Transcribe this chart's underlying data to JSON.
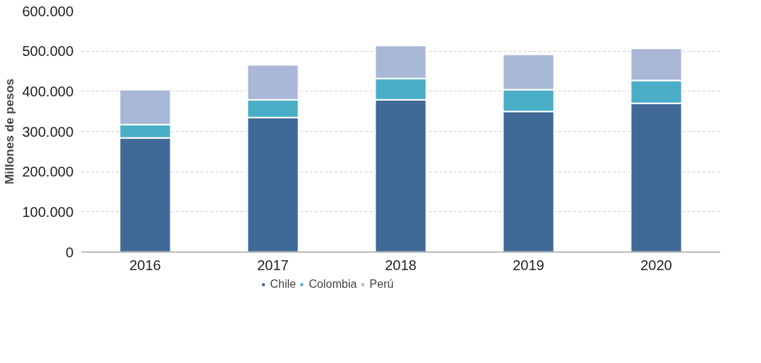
{
  "chart_data": {
    "type": "bar",
    "stacked": true,
    "ylabel": "Millones de pesos",
    "categories": [
      "2016",
      "2017",
      "2018",
      "2019",
      "2020"
    ],
    "series": [
      {
        "name": "Chile",
        "color": "#416997",
        "values": [
          284000,
          335000,
          379000,
          350000,
          370000
        ]
      },
      {
        "name": "Colombia",
        "color": "#4aaec6",
        "values": [
          33000,
          44000,
          53000,
          54000,
          57000
        ]
      },
      {
        "name": "Perú",
        "color": "#a9b8d6",
        "values": [
          87000,
          87000,
          82000,
          88000,
          80000
        ]
      }
    ],
    "ylim": [
      0,
      600000
    ],
    "yticks": [
      {
        "value": 0,
        "label": "0"
      },
      {
        "value": 100000,
        "label": "100.000"
      },
      {
        "value": 200000,
        "label": "200.000"
      },
      {
        "value": 300000,
        "label": "300.000"
      },
      {
        "value": 400000,
        "label": "400.000"
      },
      {
        "value": 500000,
        "label": "500.000"
      },
      {
        "value": 600000,
        "label": "600.000"
      }
    ],
    "grid": "y",
    "legend": "bottom"
  }
}
